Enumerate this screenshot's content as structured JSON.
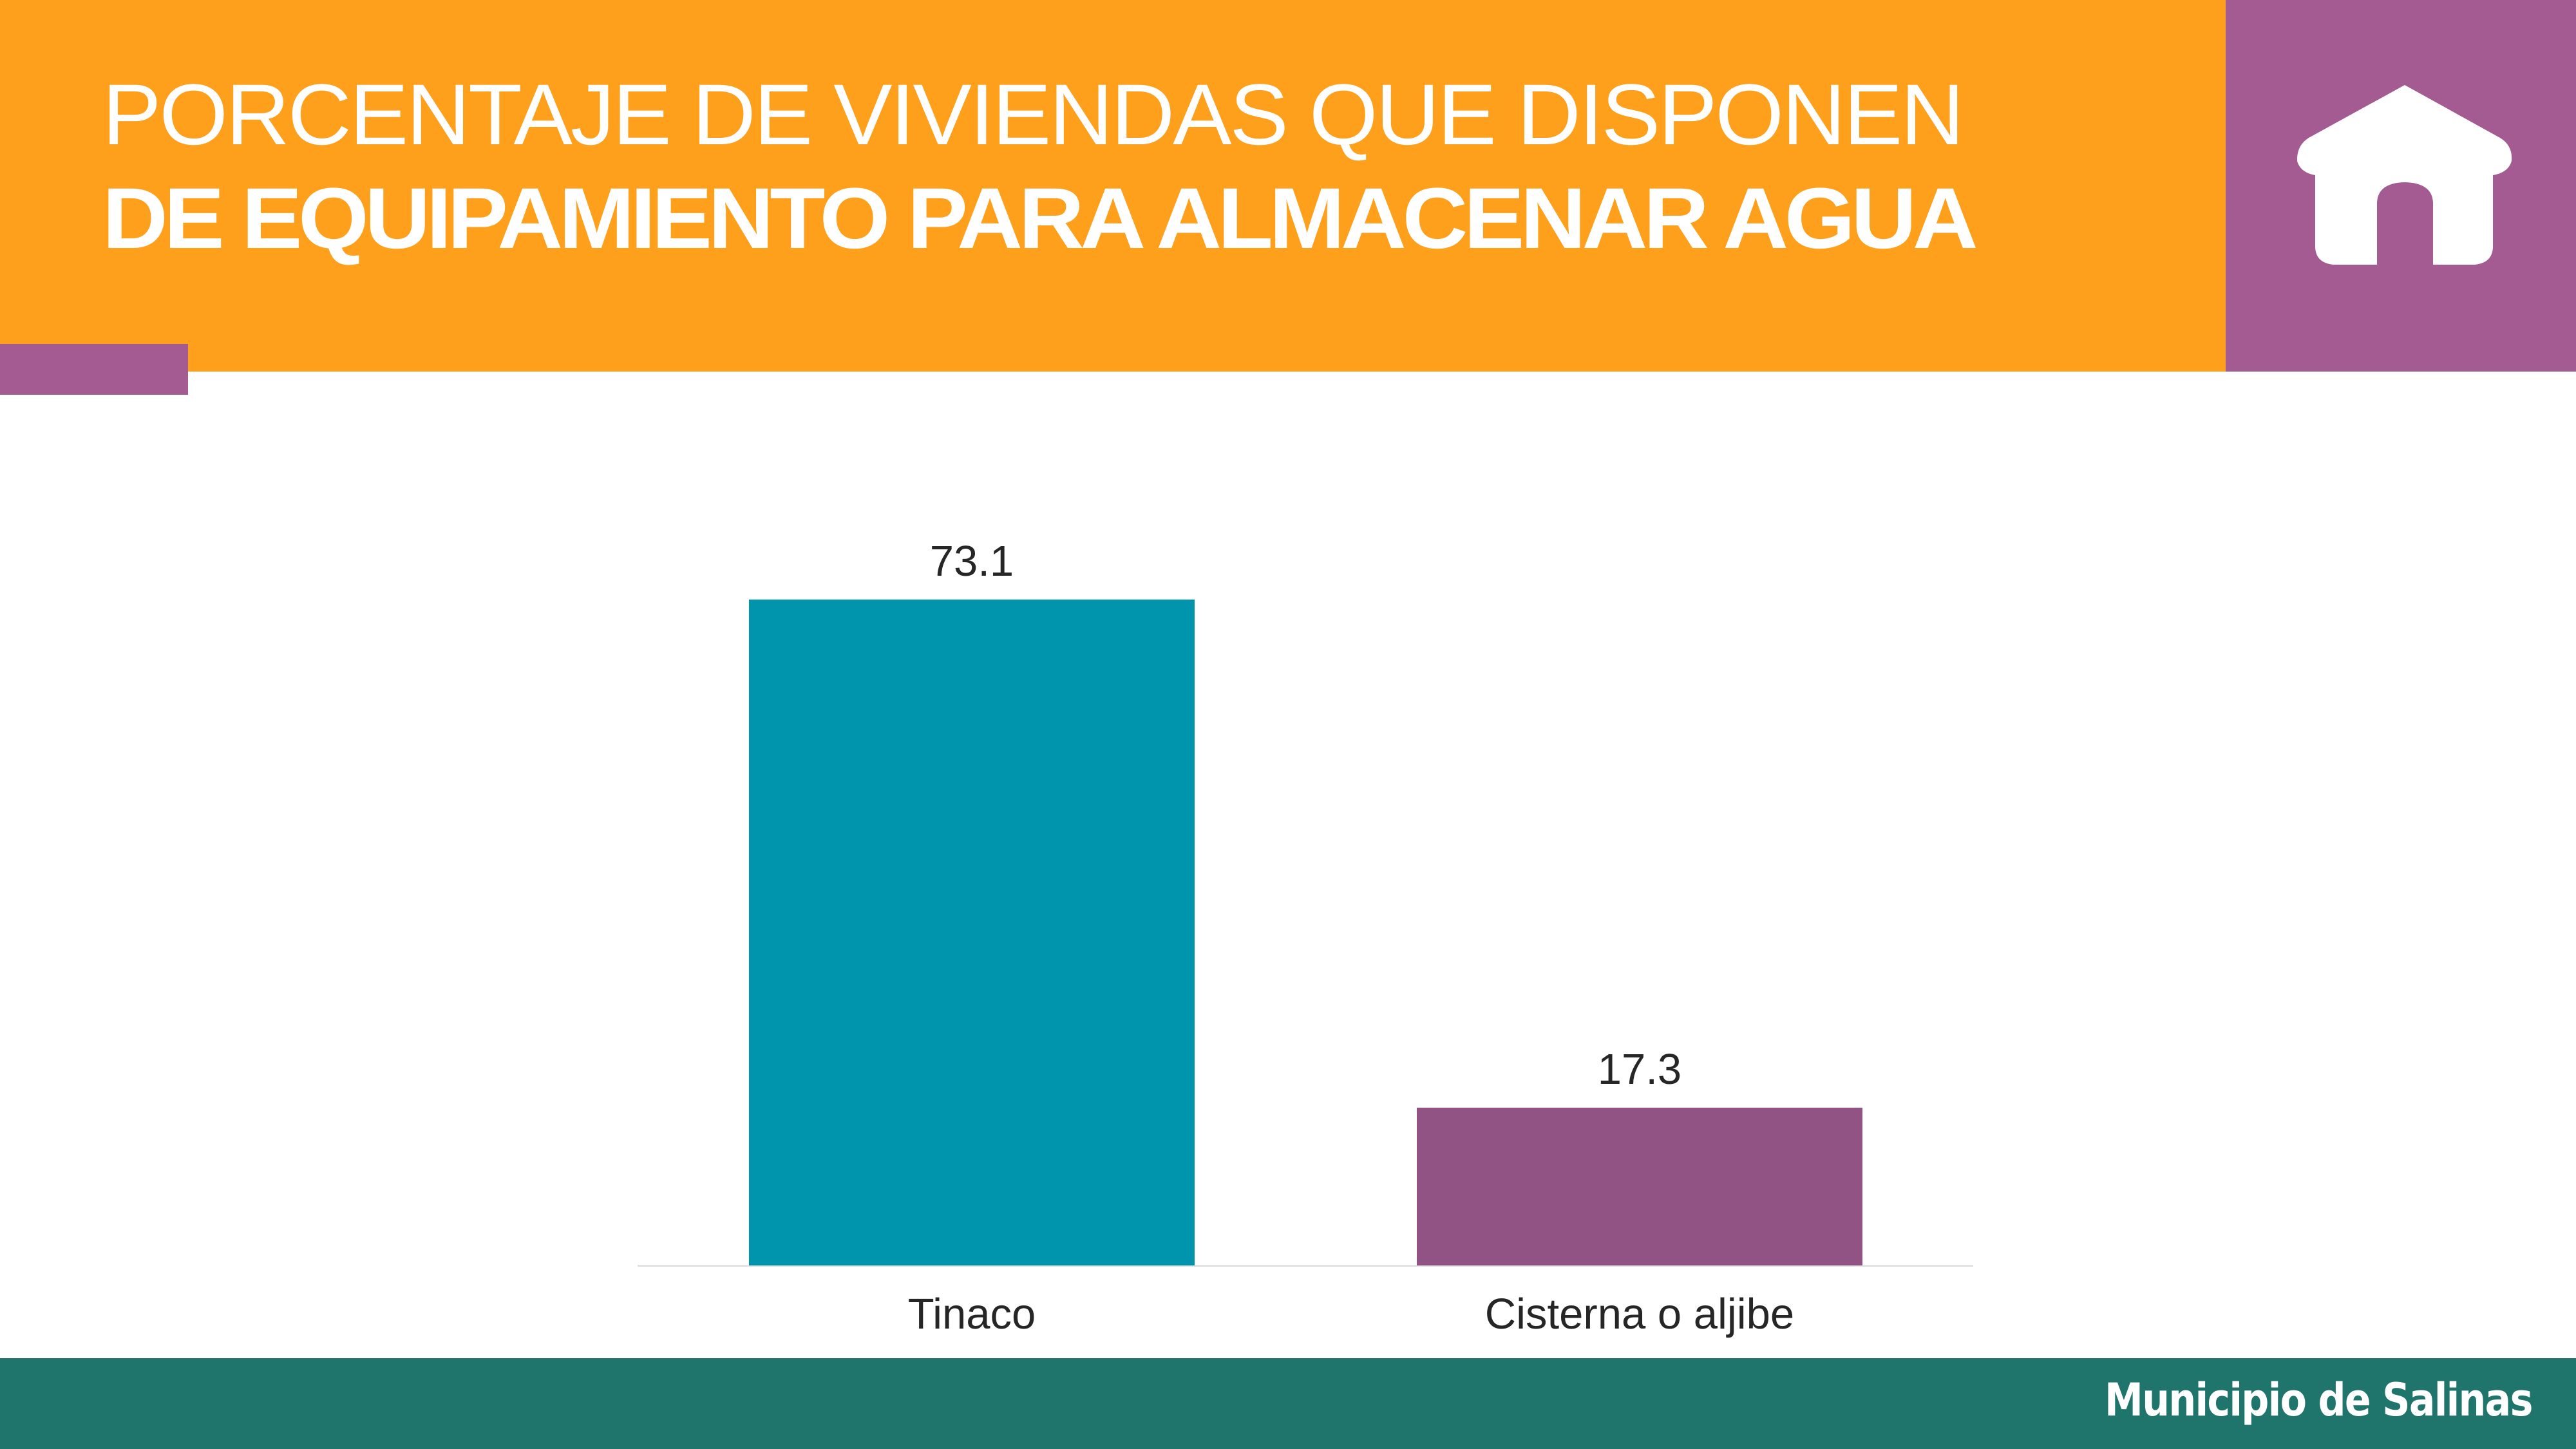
{
  "header": {
    "title_line1": "PORCENTAJE DE VIVIENDAS QUE DISPONEN",
    "title_line2": "DE EQUIPAMIENTO PARA ALMACENAR AGUA",
    "icon": "house-icon",
    "colors": {
      "banner": "#FFA01C",
      "icon_box": "#A35B91",
      "accent": "#A35B91"
    }
  },
  "chart_data": {
    "type": "bar",
    "title": "Porcentaje de viviendas que disponen de equipamiento para almacenar agua",
    "categories": [
      "Tinaco",
      "Cisterna o aljibe"
    ],
    "values": [
      73.1,
      17.3
    ],
    "data_labels": [
      "73.1",
      "17.3"
    ],
    "colors": [
      "#0095AC",
      "#915383"
    ],
    "xlabel": "",
    "ylabel": "",
    "ylim": [
      0,
      73.1
    ],
    "grid": false,
    "legend": null,
    "axis_line": true
  },
  "footer": {
    "text": "Municipio de Salinas",
    "color": "#1F746B"
  }
}
